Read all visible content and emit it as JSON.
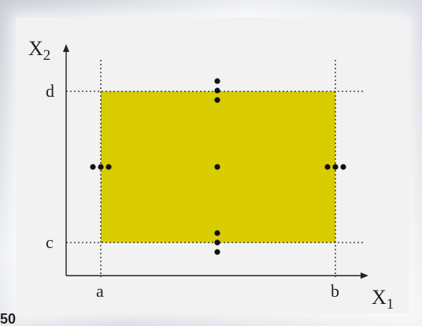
{
  "diagram": {
    "axis_x_label": "X",
    "axis_x_subscript": "1",
    "axis_y_label": "X",
    "axis_y_subscript": "2",
    "tick_a": "a",
    "tick_b": "b",
    "tick_c": "c",
    "tick_d": "d",
    "region_color": "#d9cc00",
    "point_color": "#111111",
    "grid_line_color": "#222222"
  },
  "corner_text": "50"
}
